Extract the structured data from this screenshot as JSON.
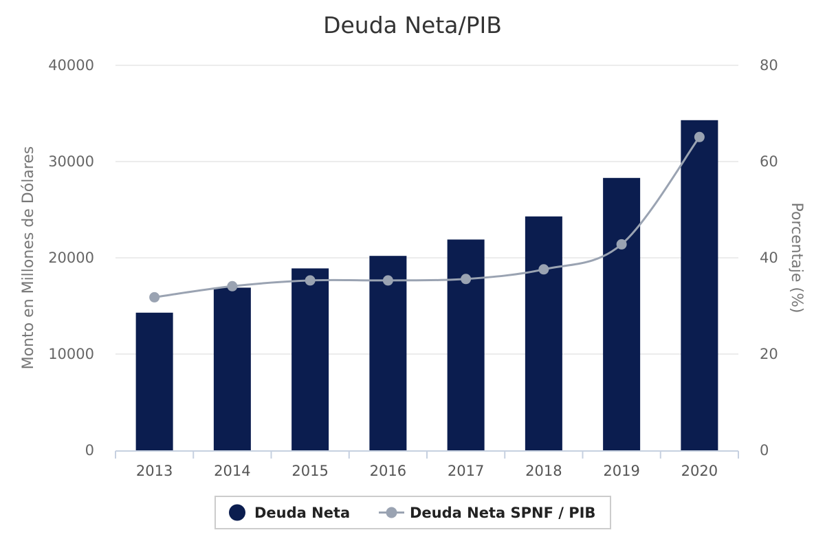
{
  "chart_data": {
    "type": "bar",
    "title": "Deuda Neta/PIB",
    "categories": [
      "2013",
      "2014",
      "2015",
      "2016",
      "2017",
      "2018",
      "2019",
      "2020"
    ],
    "series": [
      {
        "name": "Deuda Neta",
        "type": "bar",
        "axis": "left",
        "color": "#0b1d4f",
        "values": [
          14300,
          16900,
          18900,
          20200,
          21900,
          24300,
          28300,
          34300
        ]
      },
      {
        "name": "Deuda Neta SPNF / PIB",
        "type": "line",
        "axis": "right",
        "color": "#9aa3b2",
        "values": [
          31.8,
          34.1,
          35.3,
          35.3,
          35.6,
          37.6,
          42.8,
          65.1
        ]
      }
    ],
    "left_axis": {
      "label": "Monto en Millones de Dólares",
      "range": [
        0,
        40000
      ],
      "ticks": [
        "0",
        "10000",
        "20000",
        "30000",
        "40000"
      ]
    },
    "right_axis": {
      "label": "Porcentaje (%)",
      "range": [
        0,
        80
      ],
      "ticks": [
        "0",
        "20",
        "40",
        "60",
        "80"
      ]
    },
    "grid": true,
    "legend_position": "bottom"
  }
}
